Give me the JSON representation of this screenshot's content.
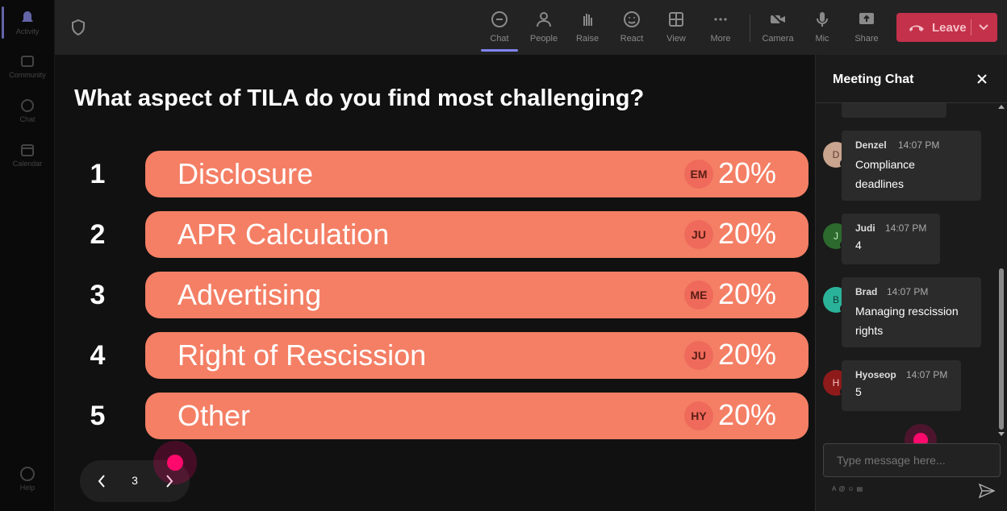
{
  "rail": {
    "items": [
      {
        "label": "Activity",
        "icon": "bell-icon"
      },
      {
        "label": "Community",
        "icon": "community-icon"
      },
      {
        "label": "Chat",
        "icon": "chat-icon"
      },
      {
        "label": "Calendar",
        "icon": "calendar-icon"
      },
      {
        "label": "Help",
        "icon": "help-icon"
      }
    ]
  },
  "toolbar": {
    "buttons": [
      {
        "label": "Chat",
        "icon": "chat-icon"
      },
      {
        "label": "People",
        "icon": "people-icon"
      },
      {
        "label": "Raise",
        "icon": "raise-hand-icon"
      },
      {
        "label": "React",
        "icon": "react-icon"
      },
      {
        "label": "View",
        "icon": "view-icon"
      },
      {
        "label": "More",
        "icon": "more-icon"
      },
      {
        "label": "Camera",
        "icon": "camera-off-icon"
      },
      {
        "label": "Mic",
        "icon": "mic-icon"
      },
      {
        "label": "Share",
        "icon": "share-icon"
      }
    ],
    "leave_label": "Leave",
    "leave_color": "#c4314b"
  },
  "poll": {
    "question": "What aspect of TILA do you find most challenging?",
    "bar_color": "#f47f65",
    "options": [
      {
        "num": "1",
        "label": "Disclosure",
        "voter": "EM",
        "pct": "20%"
      },
      {
        "num": "2",
        "label": "APR Calculation",
        "voter": "JU",
        "pct": "20%"
      },
      {
        "num": "3",
        "label": "Advertising",
        "voter": "ME",
        "pct": "20%"
      },
      {
        "num": "4",
        "label": "Right of Rescission",
        "voter": "JU",
        "pct": "20%"
      },
      {
        "num": "5",
        "label": "Other",
        "voter": "HY",
        "pct": "20%"
      }
    ],
    "page": "3"
  },
  "chat": {
    "title": "Meeting Chat",
    "messages": [
      {
        "initial": "D",
        "name": "Denzel",
        "time": "14:07 PM",
        "lines": [
          "Compliance",
          "deadlines"
        ],
        "avatar_color": "#c9a48f",
        "avatar_text_color": "#5b4033"
      },
      {
        "initial": "J",
        "name": "Judi",
        "time": "14:07 PM",
        "lines": [
          "4"
        ],
        "avatar_color": "#2d6a2d",
        "avatar_text_color": "#c8f0c8"
      },
      {
        "initial": "B",
        "name": "Brad",
        "time": "14:07 PM",
        "lines": [
          "Managing rescission",
          "rights"
        ],
        "avatar_color": "#2bb39a",
        "avatar_text_color": "#0d3b33"
      },
      {
        "initial": "H",
        "name": "Hyoseop",
        "time": "14:07 PM",
        "lines": [
          "5"
        ],
        "avatar_color": "#8e1a1a",
        "avatar_text_color": "#f5c0c0"
      }
    ],
    "compose_placeholder": "Type message here..."
  }
}
